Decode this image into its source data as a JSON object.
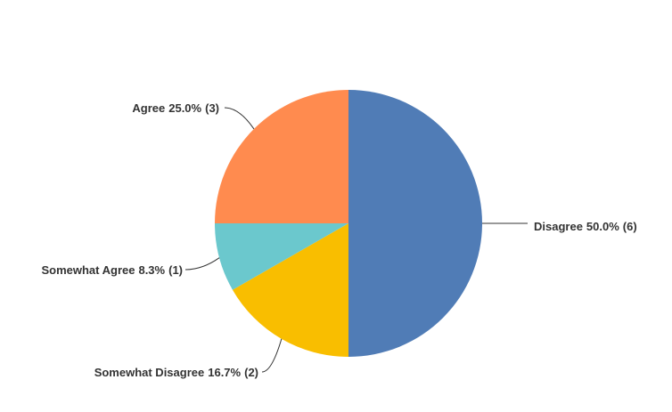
{
  "chart_data": {
    "type": "pie",
    "categories": [
      "Disagree",
      "Somewhat Disagree",
      "Somewhat Agree",
      "Agree"
    ],
    "values": [
      50.0,
      16.7,
      8.3,
      25.0
    ],
    "value_labels": [
      "50.0%",
      "16.7%",
      "8.3%",
      "25.0%"
    ],
    "count_labels": [
      "(6)",
      "(2)",
      "(1)",
      "(3)"
    ],
    "colors": [
      "#507cb6",
      "#f9be00",
      "#6bc8cd",
      "#ff8b4f"
    ]
  }
}
